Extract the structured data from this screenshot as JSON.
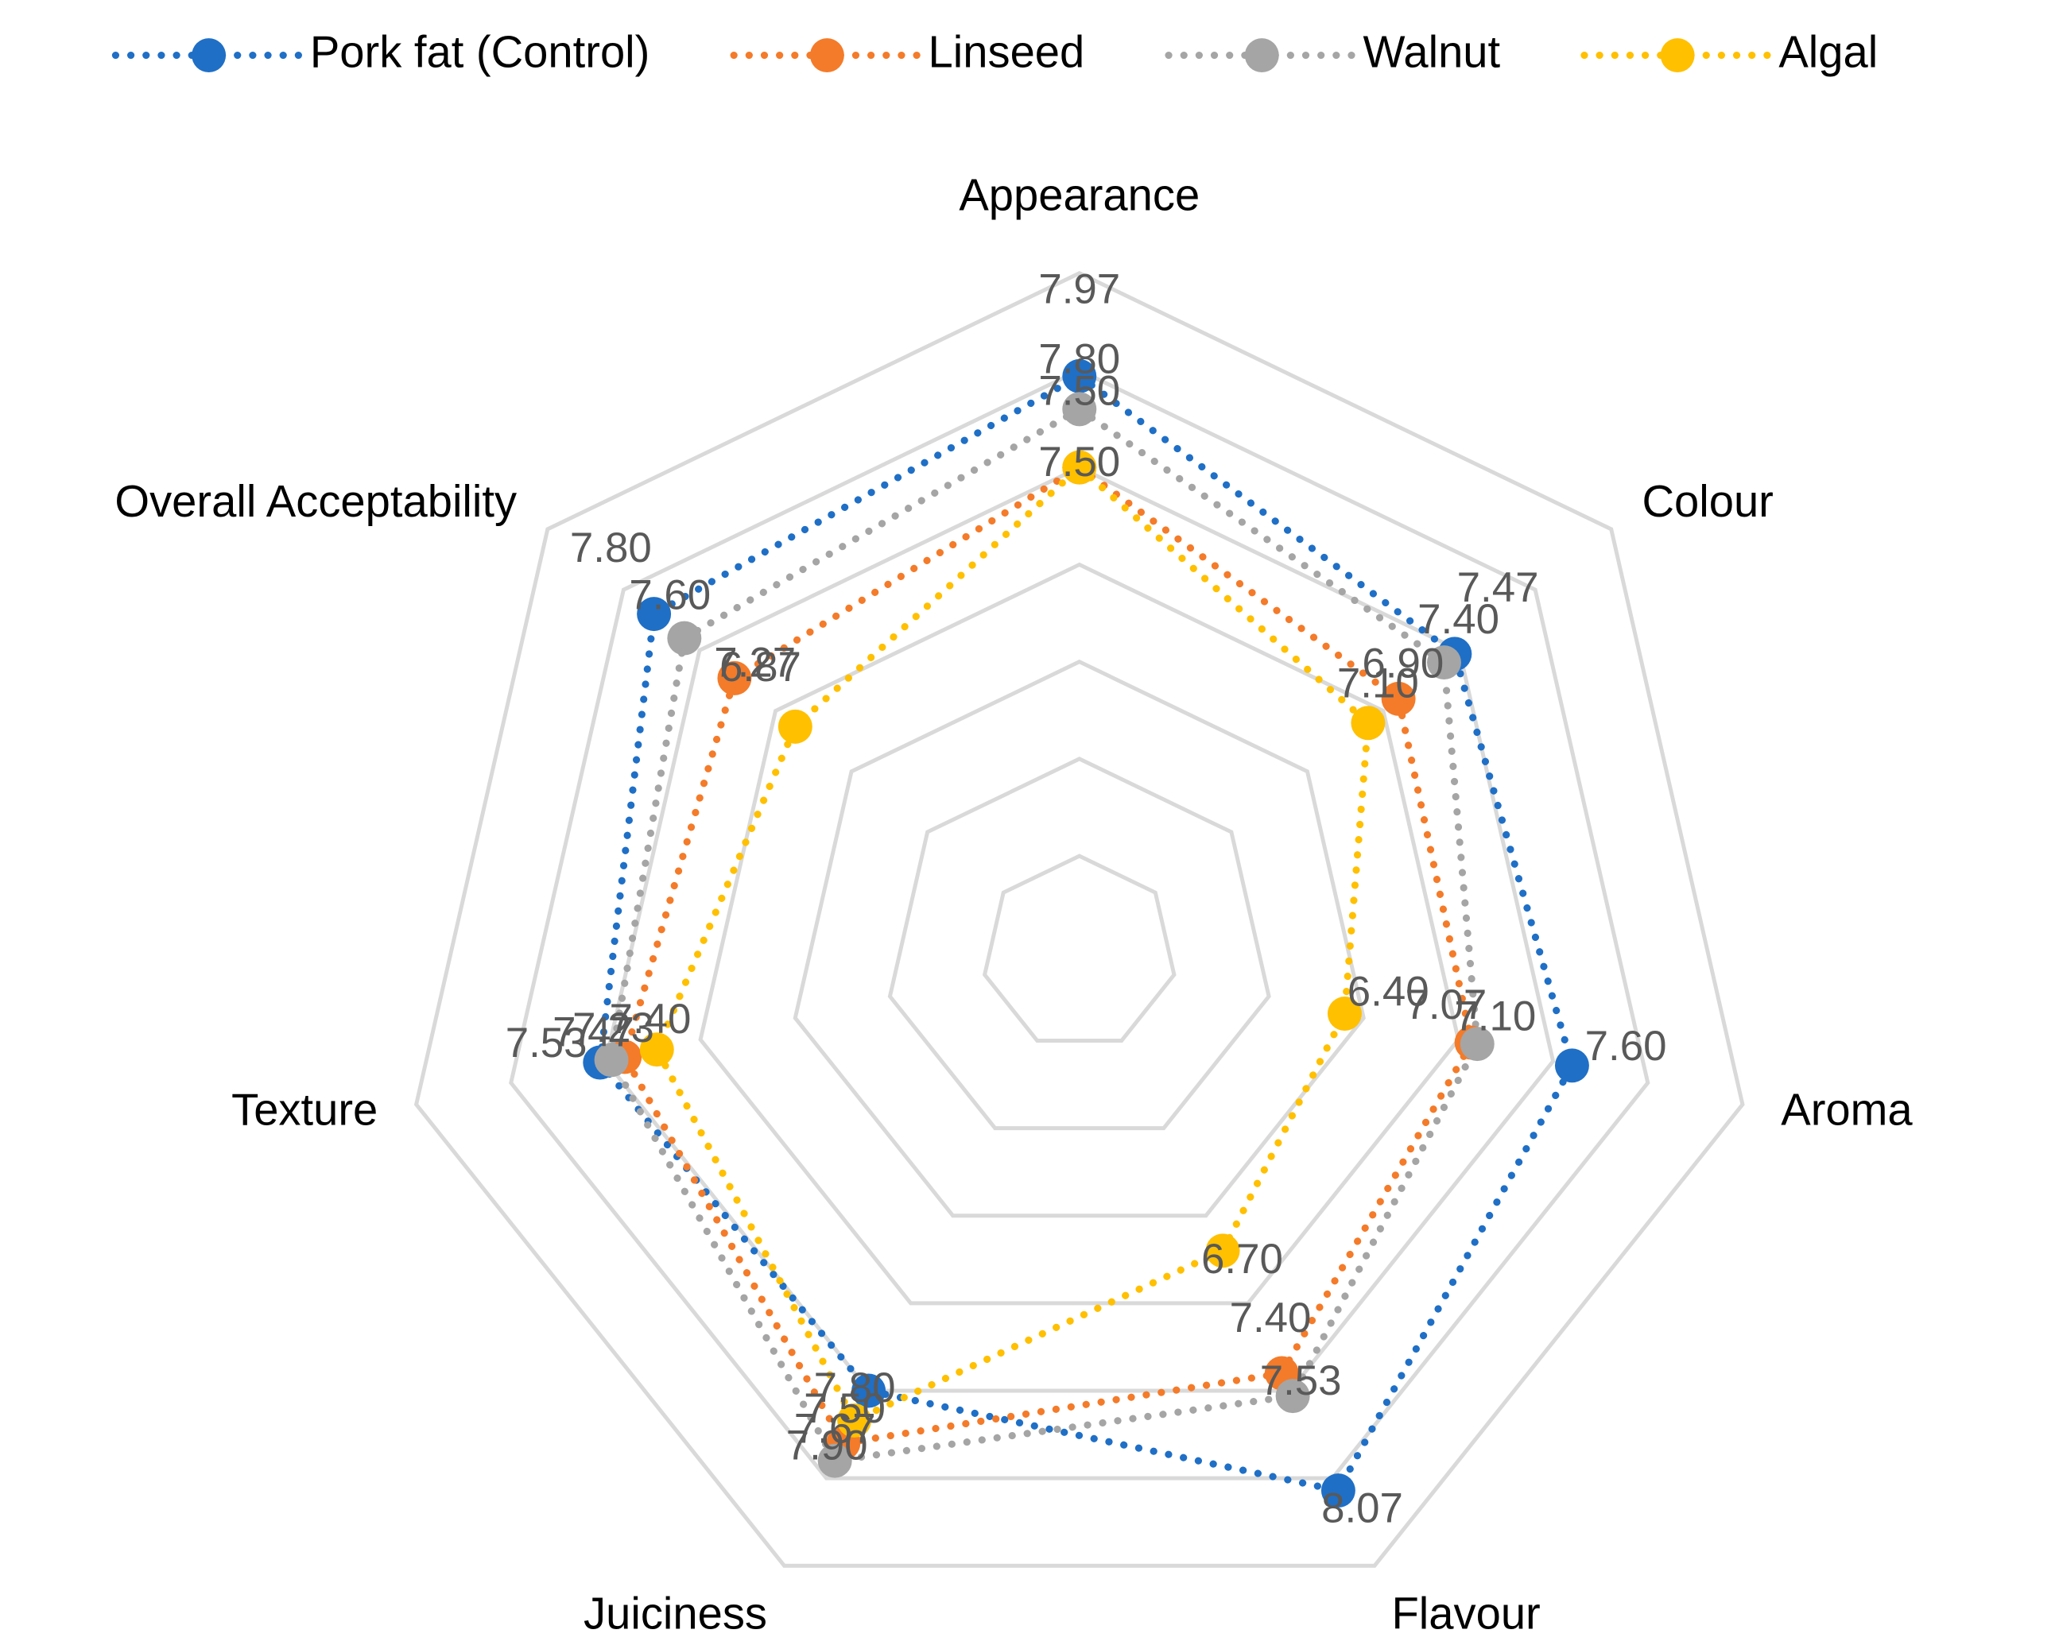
{
  "chart_data": {
    "type": "radar",
    "categories": [
      "Appearance",
      "Colour",
      "Aroma",
      "Flavour",
      "Juiciness",
      "Texture",
      "Overall Acceptability"
    ],
    "series": [
      {
        "name": "Pork fat (Control)",
        "color": "#1F6FC6",
        "values": [
          7.97,
          7.47,
          7.6,
          8.07,
          7.5,
          7.53,
          7.8
        ]
      },
      {
        "name": "Linseed",
        "color": "#F47B29",
        "values": [
          7.5,
          7.1,
          7.07,
          7.4,
          7.8,
          7.4,
          7.27
        ]
      },
      {
        "name": "Walnut",
        "color": "#A5A5A5",
        "values": [
          7.8,
          7.4,
          7.1,
          7.53,
          7.9,
          7.47,
          7.6
        ]
      },
      {
        "name": "Algal",
        "color": "#FFC000",
        "values": [
          7.5,
          6.9,
          6.4,
          6.7,
          7.67,
          7.23,
          6.87
        ]
      }
    ],
    "value_labels": [
      [
        "7.97",
        "7.47",
        "7.60",
        "8.07",
        "7.50",
        "7.53",
        "7.80"
      ],
      [
        "7.50",
        "7.10",
        "7.07",
        "7.40",
        "7.80",
        "7.40",
        "7.27"
      ],
      [
        "7.80",
        "7.40",
        "7.10",
        "7.53",
        "7.90",
        "7.47",
        "7.60"
      ],
      [
        "7.50",
        "6.90",
        "6.40",
        "6.70",
        "7.67",
        "7.23",
        "6.87"
      ]
    ],
    "rlim": [
      5,
      8.5
    ],
    "rticks": [
      5.5,
      6,
      6.5,
      7,
      7.5,
      8,
      8.5
    ],
    "grid": true,
    "legend": "top"
  }
}
